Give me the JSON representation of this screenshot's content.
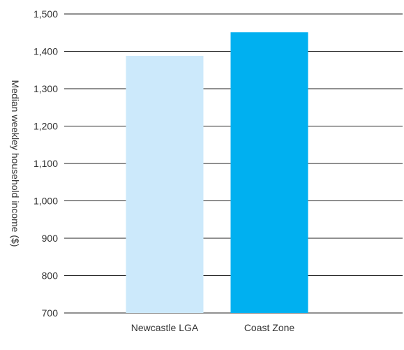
{
  "chart_data": {
    "type": "bar",
    "title": "",
    "xlabel": "",
    "ylabel": "Median weekley household income ($)",
    "categories": [
      "Newcastle LGA",
      "Coast Zone"
    ],
    "values": [
      1388,
      1451
    ],
    "colors": [
      "#cce9fb",
      "#00b0f0"
    ],
    "ylim": [
      700,
      1500
    ],
    "yticks": [
      700,
      800,
      900,
      1000,
      1100,
      1200,
      1300,
      1400,
      1500
    ],
    "ytick_labels": [
      "700",
      "800",
      "900",
      "1,000",
      "1,100",
      "1,200",
      "1,300",
      "1,400",
      "1,500"
    ],
    "grid": true,
    "legend": "none"
  }
}
